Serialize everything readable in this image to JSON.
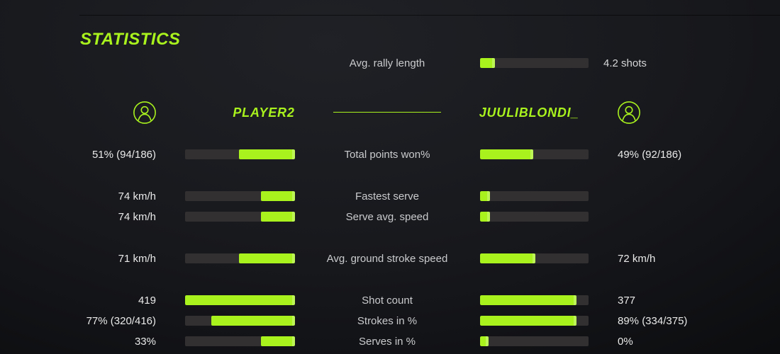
{
  "title": "STATISTICS",
  "colors": {
    "accent": "#a9f21e",
    "track": "#333031",
    "label": "#c9cbcd",
    "value": "#eaeaea"
  },
  "rally": {
    "label": "Avg. rally length",
    "value": "4.2 shots",
    "fill_pct": 14
  },
  "players": {
    "left": {
      "name": "PLAYER2"
    },
    "right": {
      "name": "JUULIBLONDI_"
    }
  },
  "rows": [
    {
      "label": "Total points won%",
      "left_value": "51% (94/186)",
      "right_value": "49% (92/186)",
      "left_pct": 51,
      "right_pct": 49
    },
    {
      "label": "Fastest serve",
      "left_value": "74 km/h",
      "right_value": "",
      "left_pct": 31,
      "right_pct": 9
    },
    {
      "label": "Serve avg. speed",
      "left_value": "74 km/h",
      "right_value": "",
      "left_pct": 31,
      "right_pct": 9
    },
    {
      "label": "Avg. ground stroke speed",
      "left_value": "71 km/h",
      "right_value": "72 km/h",
      "left_pct": 51,
      "right_pct": 51
    },
    {
      "label": "Shot count",
      "left_value": "419",
      "right_value": "377",
      "left_pct": 100,
      "right_pct": 89
    },
    {
      "label": "Strokes in %",
      "left_value": "77% (320/416)",
      "right_value": "89% (334/375)",
      "left_pct": 76,
      "right_pct": 89
    },
    {
      "label": "Serves in %",
      "left_value": "33%",
      "right_value": "0%",
      "left_pct": 31,
      "right_pct": 8
    }
  ]
}
